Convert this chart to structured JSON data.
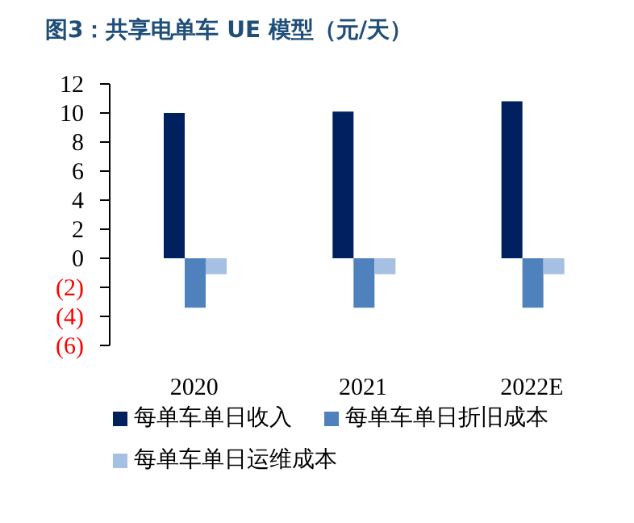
{
  "chart_data": {
    "type": "bar",
    "title": "图3：共享电单车 UE 模型（元/天）",
    "categories": [
      "2020",
      "2021",
      "2022E"
    ],
    "series": [
      {
        "name": "每单车单日收入",
        "color": "#002060",
        "values": [
          10.0,
          10.1,
          10.8
        ]
      },
      {
        "name": "每单车单日折旧成本",
        "color": "#4f81bd",
        "values": [
          -3.4,
          -3.4,
          -3.4
        ]
      },
      {
        "name": "每单车单日运维成本",
        "color": "#a6c0e3",
        "values": [
          -1.1,
          -1.1,
          -1.1
        ]
      }
    ],
    "ylim": [
      -6,
      12
    ],
    "yticks": [
      {
        "value": -6,
        "label": "(6)"
      },
      {
        "value": -4,
        "label": "(4)"
      },
      {
        "value": -2,
        "label": "(2)"
      },
      0,
      2,
      4,
      6,
      8,
      10,
      12
    ],
    "grid": false,
    "legend": "bottom"
  }
}
